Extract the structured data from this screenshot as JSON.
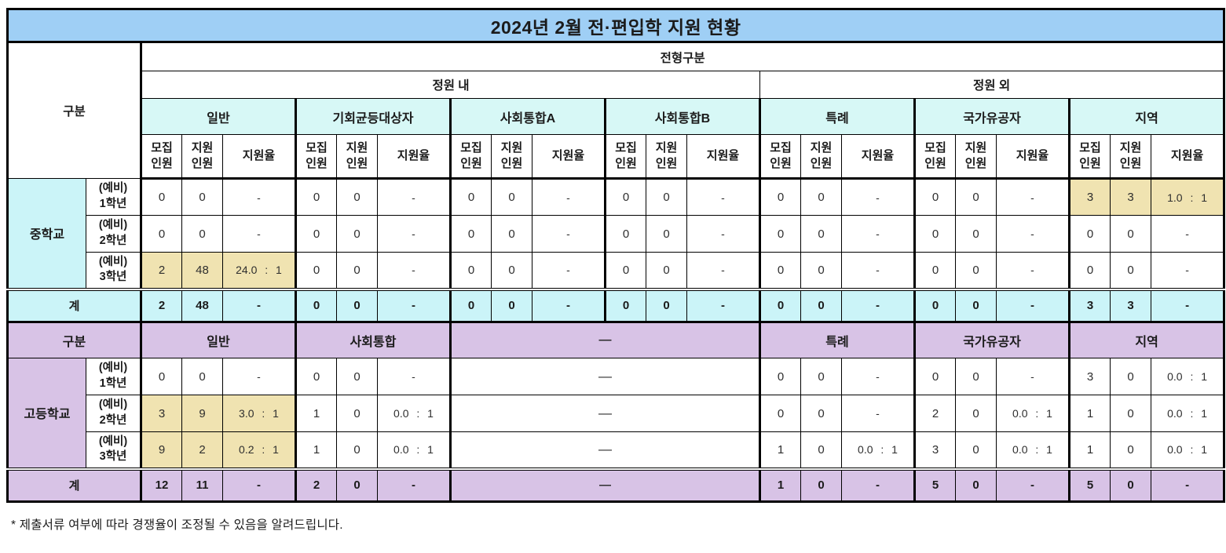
{
  "title": "2024년 2월 전·편입학 지원 현황",
  "header": {
    "category": "구분",
    "admission_division": "전형구분",
    "within_quota": "정원 내",
    "outside_quota": "정원 외",
    "groups": [
      "일반",
      "기회균등대상자",
      "사회통합A",
      "사회통합B",
      "특례",
      "국가유공자",
      "지역"
    ],
    "sub_columns": [
      "모집\n인원",
      "지원\n인원",
      "지원율"
    ]
  },
  "middle_school": {
    "section_label": "중학교",
    "rows": [
      {
        "grade": "(예비)\n1학년",
        "cells": [
          "0",
          "0",
          "-",
          "0",
          "0",
          "-",
          "0",
          "0",
          "-",
          "0",
          "0",
          "-",
          "0",
          "0",
          "-",
          "0",
          "0",
          "-",
          "3",
          "3",
          "1.0 : 1"
        ],
        "highlight": [
          18,
          19,
          20
        ]
      },
      {
        "grade": "(예비)\n2학년",
        "cells": [
          "0",
          "0",
          "-",
          "0",
          "0",
          "-",
          "0",
          "0",
          "-",
          "0",
          "0",
          "-",
          "0",
          "0",
          "-",
          "0",
          "0",
          "-",
          "0",
          "0",
          "-"
        ],
        "highlight": []
      },
      {
        "grade": "(예비)\n3학년",
        "cells": [
          "2",
          "48",
          "24.0 : 1",
          "0",
          "0",
          "-",
          "0",
          "0",
          "-",
          "0",
          "0",
          "-",
          "0",
          "0",
          "-",
          "0",
          "0",
          "-",
          "0",
          "0",
          "-"
        ],
        "highlight": [
          0,
          1,
          2
        ]
      }
    ],
    "total": {
      "label": "계",
      "cells": [
        "2",
        "48",
        "-",
        "0",
        "0",
        "-",
        "0",
        "0",
        "-",
        "0",
        "0",
        "-",
        "0",
        "0",
        "-",
        "0",
        "0",
        "-",
        "3",
        "3",
        "-"
      ]
    }
  },
  "high_school": {
    "header": {
      "category": "구분",
      "groups": [
        "일반",
        "사회통합",
        "—",
        "특례",
        "국가유공자",
        "지역"
      ]
    },
    "section_label": "고등학교",
    "rows": [
      {
        "grade": "(예비)\n1학년",
        "cells": [
          "0",
          "0",
          "-",
          "0",
          "0",
          "-",
          "—",
          "0",
          "0",
          "-",
          "0",
          "0",
          "-",
          "3",
          "0",
          "0.0 : 1"
        ],
        "highlight": []
      },
      {
        "grade": "(예비)\n2학년",
        "cells": [
          "3",
          "9",
          "3.0 : 1",
          "1",
          "0",
          "0.0 : 1",
          "—",
          "0",
          "0",
          "-",
          "2",
          "0",
          "0.0 : 1",
          "1",
          "0",
          "0.0 : 1"
        ],
        "highlight": [
          0,
          1,
          2
        ]
      },
      {
        "grade": "(예비)\n3학년",
        "cells": [
          "9",
          "2",
          "0.2 : 1",
          "1",
          "0",
          "0.0 : 1",
          "—",
          "1",
          "0",
          "0.0 : 1",
          "3",
          "0",
          "0.0 : 1",
          "1",
          "0",
          "0.0 : 1"
        ],
        "highlight": [
          0,
          1,
          2
        ]
      }
    ],
    "total": {
      "label": "계",
      "cells": [
        "12",
        "11",
        "-",
        "2",
        "0",
        "-",
        "—",
        "1",
        "0",
        "-",
        "5",
        "0",
        "-",
        "5",
        "0",
        "-"
      ]
    }
  },
  "footnote": "* 제출서류 여부에 따라 경쟁율이 조정될 수 있음을 알려드립니다.",
  "colors": {
    "title_bg": "#9FCFF5",
    "cyan_header": "#D7F8F6",
    "cyan_section": "#CBF4F8",
    "purple": "#D8C3E6",
    "highlight": "#F0E3B1"
  }
}
